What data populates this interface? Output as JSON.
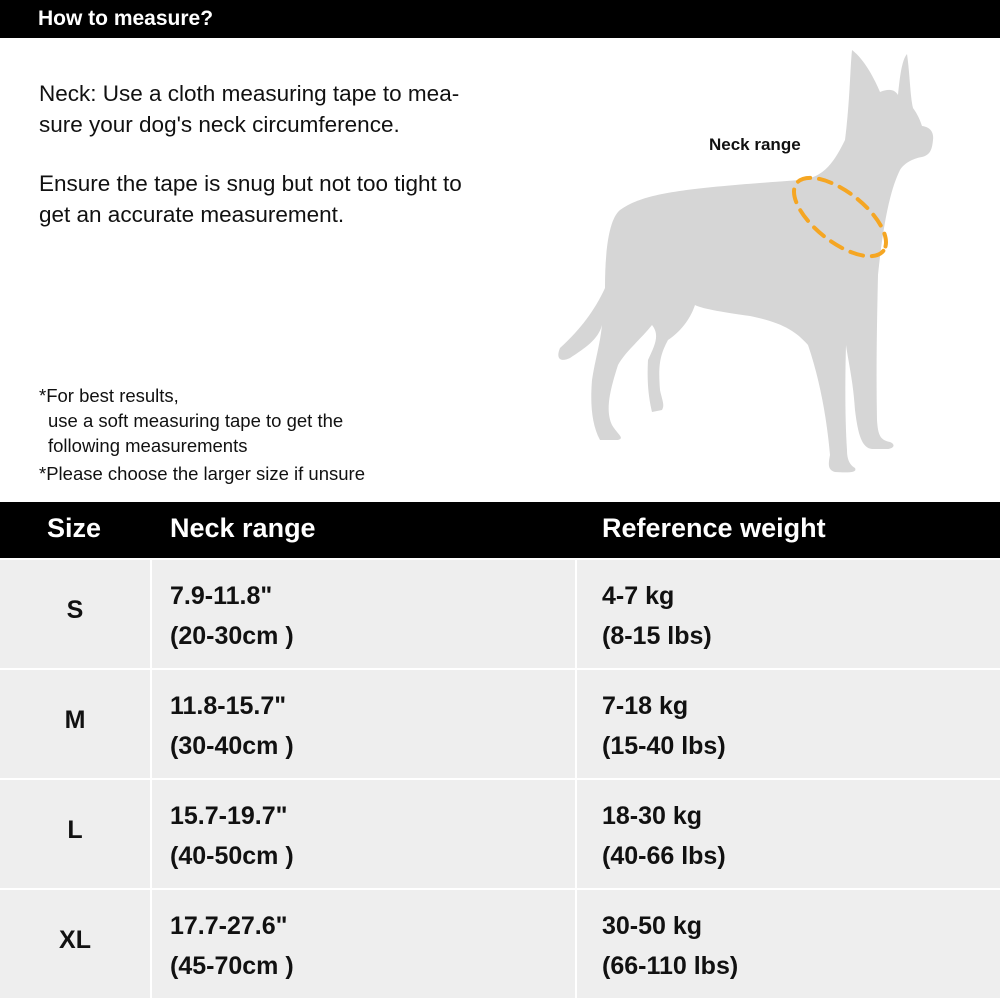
{
  "header": {
    "title": "How to measure?"
  },
  "instructions": {
    "neck": "Neck: Use a cloth measuring tape to mea-sure your dog's neck circumference.",
    "neck_line1": "Neck: Use a cloth measuring tape to mea-",
    "neck_line2": "sure your dog's neck circumference.",
    "ensure_line1": "Ensure the tape is snug but not too tight to",
    "ensure_line2": "get an accurate measurement."
  },
  "notes": {
    "note1_line1": "*For best results,",
    "note1_line2": "use a soft measuring tape to get the",
    "note1_line3": "following measurements",
    "note2": "*Please choose the larger size if unsure"
  },
  "illustration": {
    "label": "Neck range",
    "silhouette_color": "#d6d6d6",
    "tape_color": "#f5a623"
  },
  "table": {
    "headers": [
      "Size",
      "Neck range",
      "Reference weight"
    ],
    "rows": [
      {
        "size": "S",
        "neck_in": "7.9-11.8\"",
        "neck_cm": "(20-30cm )",
        "weight_kg": "4-7 kg",
        "weight_lbs": "(8-15 lbs)"
      },
      {
        "size": "M",
        "neck_in": "11.8-15.7\"",
        "neck_cm": "(30-40cm )",
        "weight_kg": "7-18 kg",
        "weight_lbs": "(15-40 lbs)"
      },
      {
        "size": "L",
        "neck_in": "15.7-19.7\"",
        "neck_cm": "(40-50cm )",
        "weight_kg": "18-30 kg",
        "weight_lbs": "(40-66 lbs)"
      },
      {
        "size": "XL",
        "neck_in": "17.7-27.6\"",
        "neck_cm": "(45-70cm )",
        "weight_kg": "30-50 kg",
        "weight_lbs": "(66-110 lbs)"
      }
    ]
  }
}
